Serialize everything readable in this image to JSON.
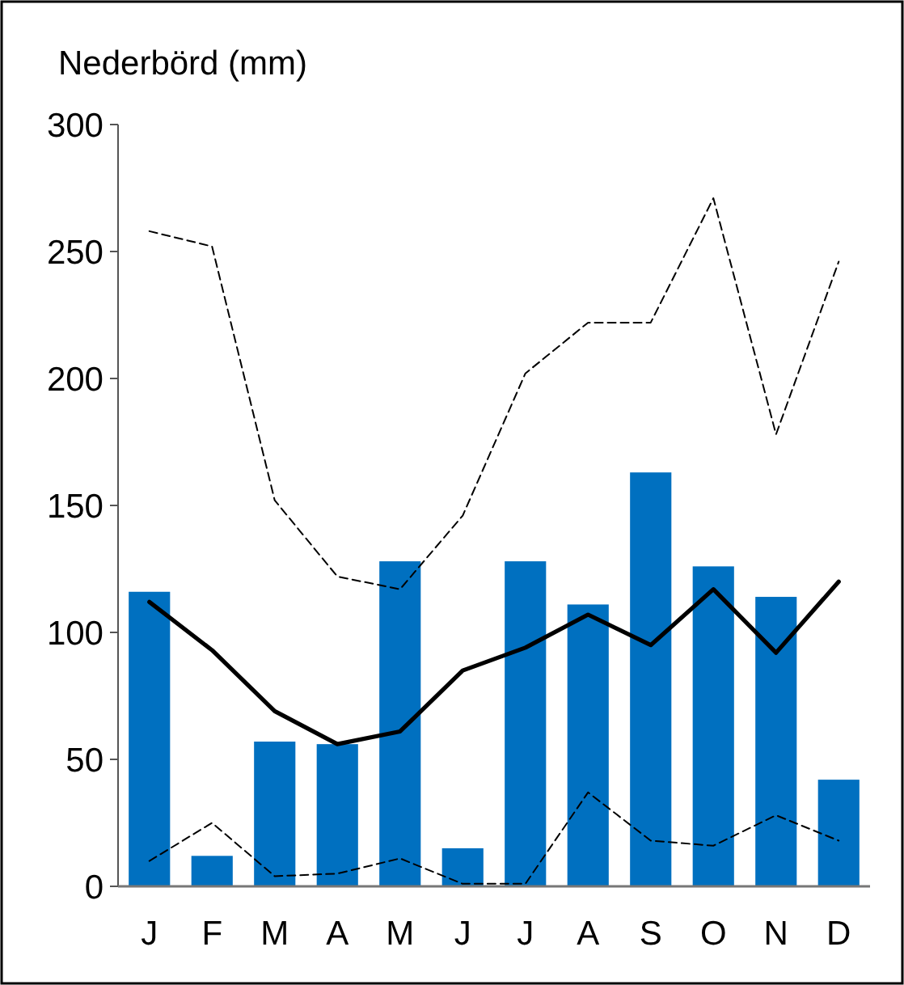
{
  "chart_data": {
    "type": "bar",
    "ylabel": "Nederbörd (mm)",
    "categories": [
      "J",
      "F",
      "M",
      "A",
      "M",
      "J",
      "J",
      "A",
      "S",
      "O",
      "N",
      "D"
    ],
    "series": [
      {
        "color": "#0070c0",
        "values": [
          116,
          12,
          57,
          56,
          128,
          15,
          128,
          111,
          163,
          126,
          114,
          42
        ]
      },
      {
        "type": "line",
        "color": "#000000",
        "line_style": "solid",
        "values": [
          112,
          93,
          69,
          56,
          61,
          85,
          94,
          107,
          95,
          117,
          92,
          120
        ]
      },
      {
        "type": "line",
        "color": "#000000",
        "line_style": "dashed",
        "values": [
          258,
          252,
          152,
          122,
          117,
          146,
          202,
          222,
          222,
          271,
          178,
          246
        ]
      },
      {
        "type": "line",
        "color": "#000000",
        "line_style": "dashed",
        "values": [
          10,
          25,
          4,
          5,
          11,
          1,
          1,
          37,
          18,
          16,
          28,
          18
        ]
      }
    ],
    "ylim": [
      0,
      300
    ],
    "yticks": [
      0,
      50,
      100,
      150,
      200,
      250,
      300
    ],
    "grid": false,
    "marker": "none"
  }
}
